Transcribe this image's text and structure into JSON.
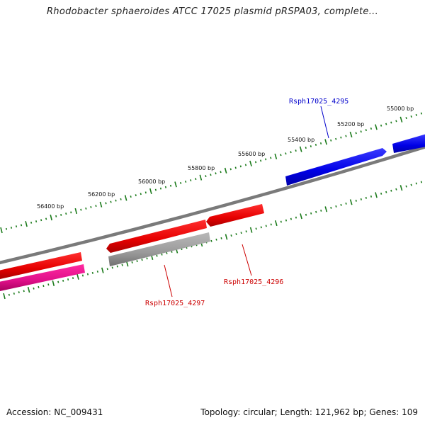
{
  "title": "Rhodobacter sphaeroides ATCC 17025 plasmid pRSPA03, complete...",
  "footer": {
    "accession": "Accession: NC_009431",
    "summary": "Topology: circular; Length: 121,962 bp; Genes: 109"
  },
  "ticks": [
    {
      "label": "55000 bp"
    },
    {
      "label": "55200 bp"
    },
    {
      "label": "55400 bp"
    },
    {
      "label": "55600 bp"
    },
    {
      "label": "55800 bp"
    },
    {
      "label": "56000 bp"
    },
    {
      "label": "56200 bp"
    },
    {
      "label": "56400 bp"
    }
  ],
  "genes": [
    {
      "name": "Rsph17025_4295",
      "color": "#0000ff"
    },
    {
      "name": "Rsph17025_4296",
      "color": "#cc0000"
    },
    {
      "name": "Rsph17025_4297",
      "color": "#cc0000"
    }
  ],
  "colors": {
    "backbone": "#808080",
    "tick": "#1a7a1a",
    "forward_gene": "#0000ff",
    "reverse_gene": "#ee0000",
    "rna_feature": "#ff1493",
    "gray_feature": "#a0a0a0"
  }
}
